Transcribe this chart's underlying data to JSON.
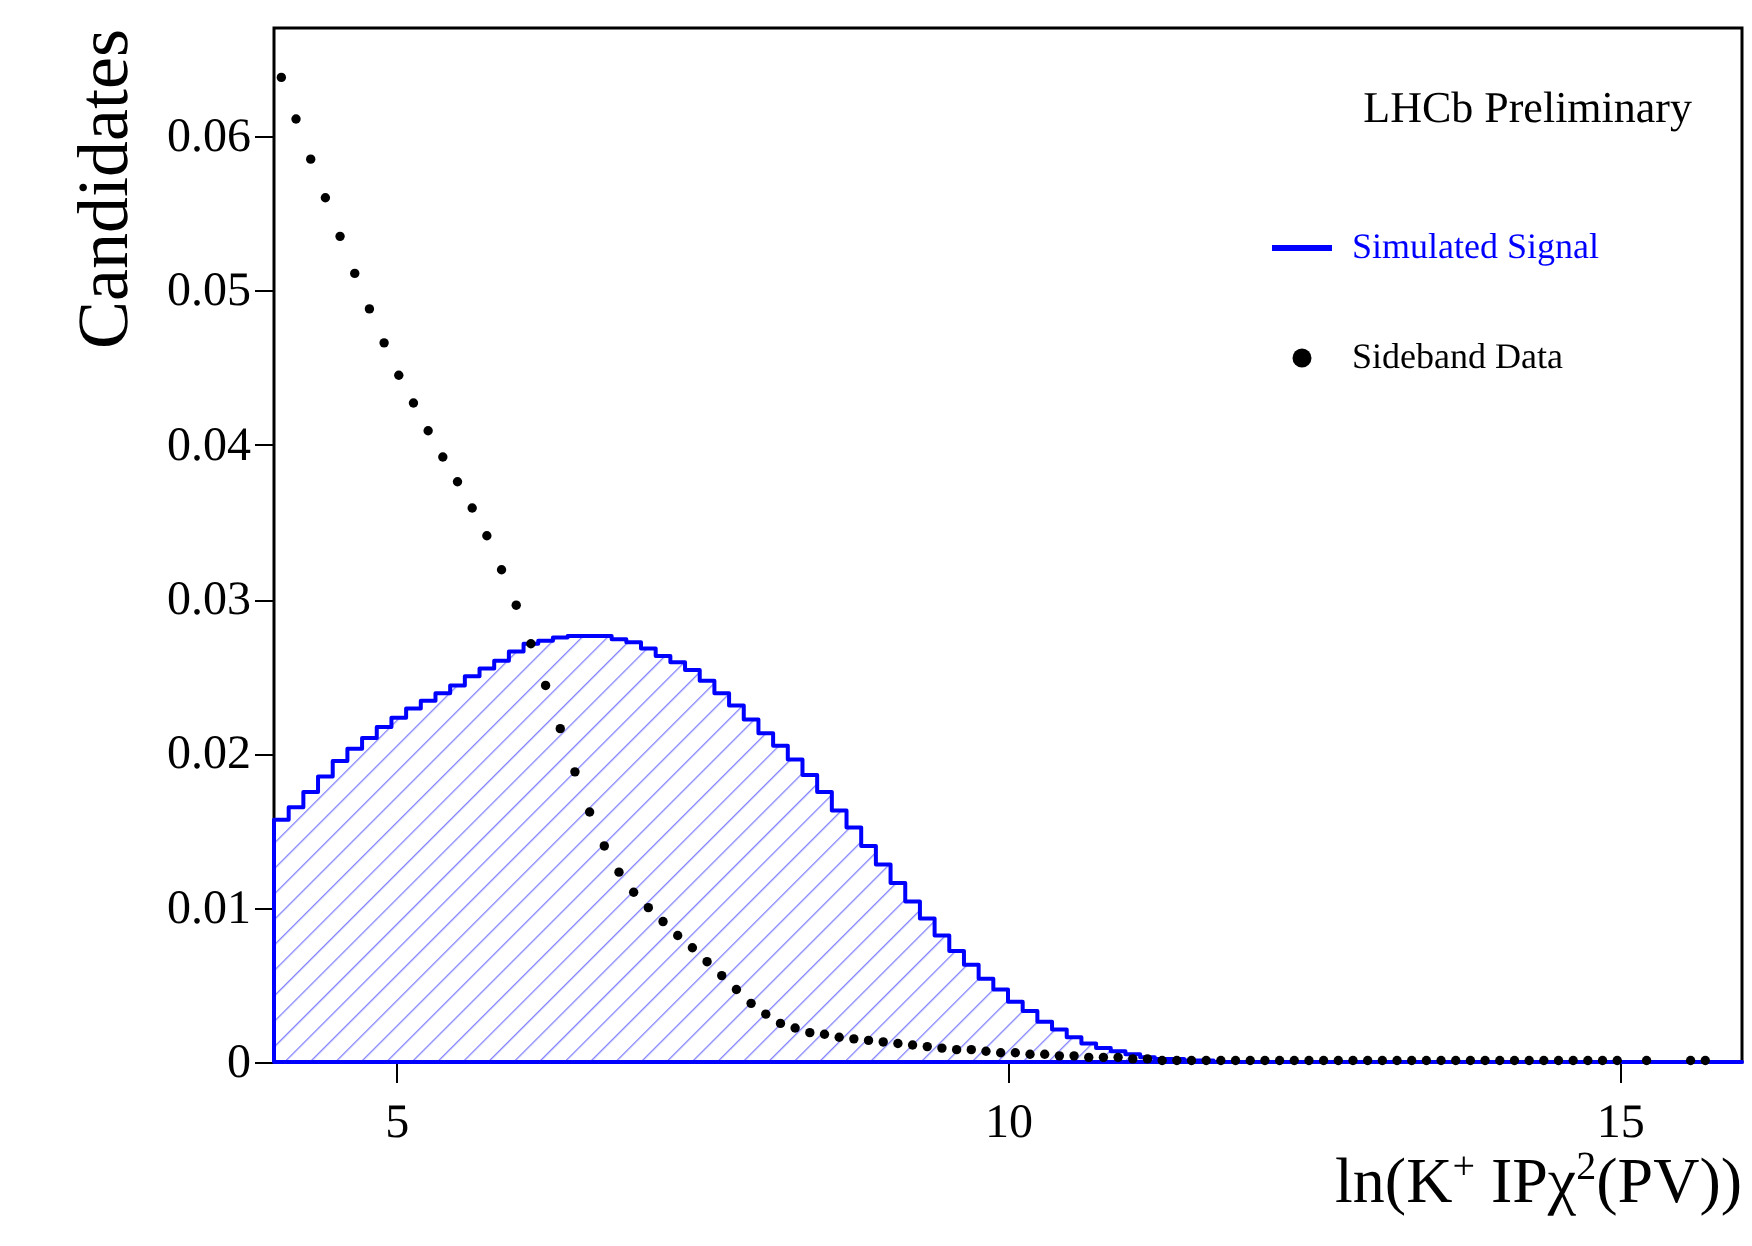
{
  "chart_data": {
    "type": "histogram",
    "xlabel": "ln(K$^{+}$ IPχ$^{2}$(PV))",
    "ylabel": "Candidates",
    "annotations": [
      "LHCb Preliminary"
    ],
    "bins": [
      4,
      4.12,
      4.24,
      4.36,
      4.48,
      4.6,
      4.72,
      4.84,
      4.96,
      5.08,
      5.2,
      5.32,
      5.44,
      5.56,
      5.68,
      5.8,
      5.92,
      6.04,
      6.16,
      6.28,
      6.4,
      6.52,
      6.64,
      6.76,
      6.88,
      7,
      7.12,
      7.24,
      7.36,
      7.48,
      7.6,
      7.72,
      7.84,
      7.96,
      8.08,
      8.2,
      8.32,
      8.44,
      8.56,
      8.68,
      8.8,
      8.92,
      9.04,
      9.16,
      9.28,
      9.4,
      9.52,
      9.64,
      9.76,
      9.88,
      10,
      10.12,
      10.24,
      10.36,
      10.48,
      10.6,
      10.72,
      10.84,
      10.96,
      11.08,
      11.2,
      11.32,
      11.44,
      11.56,
      11.68,
      11.8,
      11.92,
      12.04,
      12.16,
      12.28,
      12.4,
      12.52,
      12.64,
      12.76,
      12.88,
      13,
      13.12,
      13.24,
      13.36,
      13.48,
      13.6,
      13.72,
      13.84,
      13.96,
      14.08,
      14.2,
      14.32,
      14.44,
      14.56,
      14.68,
      14.8,
      14.92,
      15.04,
      15.16,
      15.28,
      15.4,
      15.52,
      15.64,
      15.76,
      15.88,
      16
    ],
    "series": [
      {
        "name": "Simulated Signal",
        "color": "#0000ff",
        "values": [
          0.0157,
          0.0165,
          0.0175,
          0.0185,
          0.0195,
          0.0203,
          0.021,
          0.0217,
          0.0223,
          0.0229,
          0.0234,
          0.0239,
          0.0244,
          0.025,
          0.0255,
          0.026,
          0.0266,
          0.0271,
          0.0273,
          0.0275,
          0.0276,
          0.0276,
          0.0276,
          0.0274,
          0.0272,
          0.0268,
          0.0263,
          0.0259,
          0.0254,
          0.0247,
          0.0239,
          0.0231,
          0.0222,
          0.0213,
          0.0205,
          0.0196,
          0.0186,
          0.0175,
          0.0163,
          0.0152,
          0.014,
          0.0128,
          0.0116,
          0.0104,
          0.0093,
          0.0082,
          0.0072,
          0.0063,
          0.0054,
          0.0047,
          0.0039,
          0.0033,
          0.0026,
          0.0021,
          0.0016,
          0.0012,
          0.0009,
          0.0007,
          0.0005,
          0.0003,
          0.0002,
          0.0002,
          0.0001,
          0.0001,
          0,
          0,
          0,
          0,
          0,
          0,
          0,
          0,
          0,
          0,
          0,
          0,
          0,
          0,
          0,
          0,
          0,
          0,
          0,
          0,
          0,
          0,
          0,
          0,
          0,
          0,
          0,
          0,
          0,
          0,
          0,
          0,
          0,
          0,
          0,
          0
        ]
      },
      {
        "name": "Sideband Data",
        "type": "scatter",
        "marker": "circle",
        "color": "#000000",
        "x": [
          4.06,
          4.18,
          4.3,
          4.42,
          4.54,
          4.66,
          4.78,
          4.9,
          5.02,
          5.14,
          5.26,
          5.38,
          5.5,
          5.62,
          5.74,
          5.86,
          5.98,
          6.1,
          6.22,
          6.34,
          6.46,
          6.58,
          6.7,
          6.82,
          6.94,
          7.06,
          7.18,
          7.3,
          7.42,
          7.54,
          7.66,
          7.78,
          7.9,
          8.02,
          8.14,
          8.26,
          8.38,
          8.5,
          8.62,
          8.74,
          8.86,
          8.98,
          9.1,
          9.22,
          9.34,
          9.46,
          9.58,
          9.7,
          9.82,
          9.94,
          10.06,
          10.18,
          10.3,
          10.42,
          10.54,
          10.66,
          10.78,
          10.9,
          11.02,
          11.14,
          11.26,
          11.38,
          11.5,
          11.62,
          11.74,
          11.86,
          11.98,
          12.1,
          12.22,
          12.34,
          12.46,
          12.58,
          12.7,
          12.82,
          12.94,
          13.06,
          13.18,
          13.3,
          13.42,
          13.54,
          13.66,
          13.78,
          13.9,
          14.02,
          14.14,
          14.26,
          14.38,
          14.5,
          14.62,
          14.74,
          14.86,
          14.98,
          15.1,
          15.22,
          15.34,
          15.46,
          15.58,
          15.7
        ],
        "values": [
          0.0638,
          0.0611,
          0.0585,
          0.056,
          0.0535,
          0.0511,
          0.0488,
          0.0466,
          0.0445,
          0.0427,
          0.0409,
          0.0392,
          0.0376,
          0.0359,
          0.0341,
          0.0319,
          0.0296,
          0.0271,
          0.0244,
          0.0216,
          0.0188,
          0.0162,
          0.014,
          0.0123,
          0.011,
          0.01,
          0.0091,
          0.0082,
          0.0074,
          0.0065,
          0.0056,
          0.0047,
          0.0038,
          0.0031,
          0.0025,
          0.0022,
          0.0019,
          0.0018,
          0.0016,
          0.0015,
          0.0014,
          0.0013,
          0.0012,
          0.0011,
          0.001,
          0.0009,
          0.0008,
          0.0008,
          0.0007,
          0.0006,
          0.0006,
          0.0005,
          0.0005,
          0.0004,
          0.0004,
          0.0003,
          0.0003,
          0.0003,
          0.0002,
          0.0002,
          0.0001,
          0.0001,
          0.0001,
          0.0001,
          0.0001,
          0.0001,
          0.0001,
          0.0001,
          0.0001,
          0.0001,
          0.0001,
          0.0001,
          0.0001,
          0.0001,
          0.0001,
          0.0001,
          0.0001,
          0.0001,
          0.0001,
          0.0001,
          0.0001,
          0.0001,
          0.0001,
          0.0001,
          0.0001,
          0.0001,
          0.0001,
          0.0001,
          0.0001,
          0.0001,
          0.0001,
          0.0001,
          null,
          0.0001,
          null,
          null,
          0.0001,
          0.0001
        ]
      }
    ],
    "xlim": [
      4,
      16
    ],
    "xticks": [
      5,
      10,
      15
    ],
    "ylim": [
      0,
      0.067
    ],
    "yticks": [
      0,
      0.01,
      0.02,
      0.03,
      0.04,
      0.05,
      0.06
    ],
    "legend": "top right"
  }
}
